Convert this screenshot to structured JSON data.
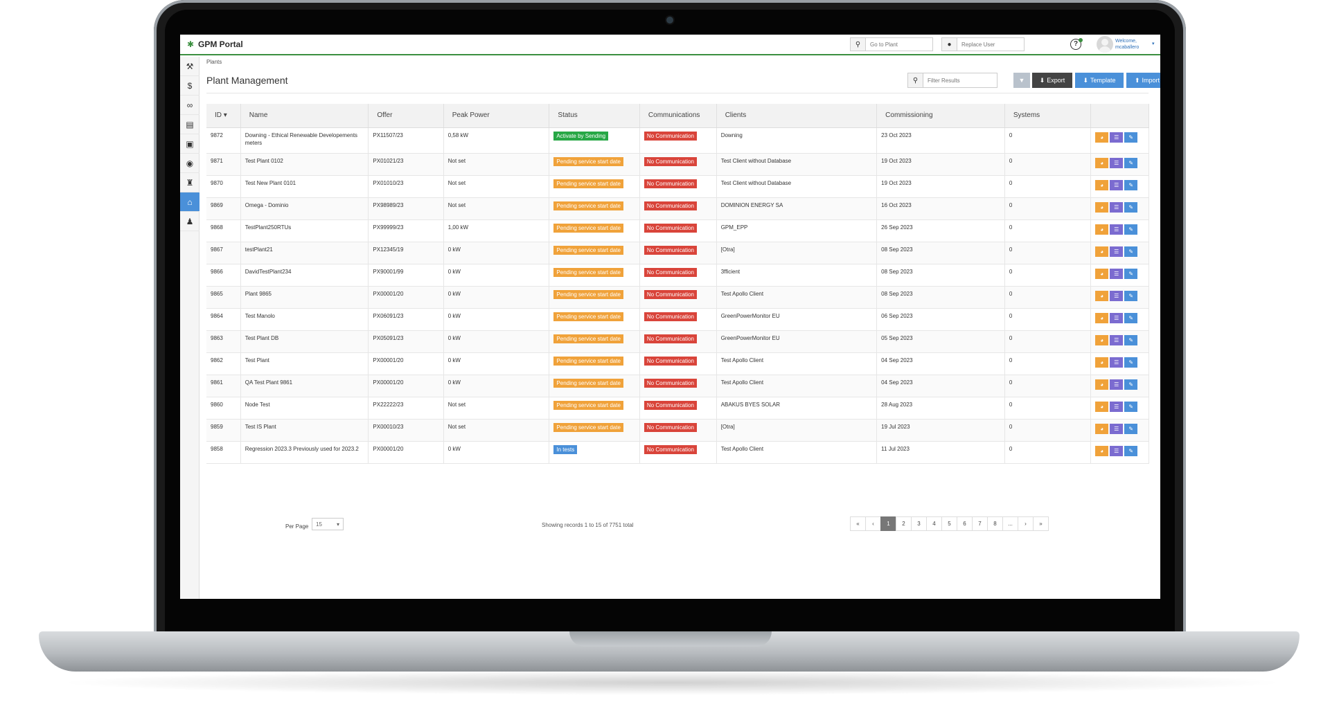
{
  "app": {
    "title": "GPM Portal"
  },
  "topbar": {
    "plant_search_placeholder": "Go to Plant",
    "user_search_placeholder": "Replace User",
    "welcome": "Welcome,",
    "username": "mcaballero"
  },
  "breadcrumb": "Plants",
  "page": {
    "title": "Plant Management"
  },
  "toolbar": {
    "filter_placeholder": "Filter Results",
    "export_label": "Export",
    "template_label": "Template",
    "import_label": "Import"
  },
  "table": {
    "headers": {
      "id": "ID",
      "name": "Name",
      "offer": "Offer",
      "peak_power": "Peak Power",
      "status": "Status",
      "communications": "Communications",
      "clients": "Clients",
      "commissioning": "Commissioning",
      "systems": "Systems"
    },
    "rows": [
      {
        "id": "9872",
        "name": "Downing - Ethical Renewable Developements meters",
        "offer": "PX11507/23",
        "peak": "0,58 kW",
        "status": "Activate by Sending",
        "status_color": "#27a745",
        "comm": "No Communication",
        "client": "Downing",
        "date": "23 Oct 2023",
        "systems": "0"
      },
      {
        "id": "9871",
        "name": "Test Plant 0102",
        "offer": "PX01021/23",
        "peak": "Not set",
        "status": "Pending service start date",
        "status_color": "#f0a23a",
        "comm": "No Communication",
        "client": "Test Client without Database",
        "date": "19 Oct 2023",
        "systems": "0"
      },
      {
        "id": "9870",
        "name": "Test New Plant 0101",
        "offer": "PX01010/23",
        "peak": "Not set",
        "status": "Pending service start date",
        "status_color": "#f0a23a",
        "comm": "No Communication",
        "client": "Test Client without Database",
        "date": "19 Oct 2023",
        "systems": "0"
      },
      {
        "id": "9869",
        "name": "Omega - Dominio",
        "offer": "PX98989/23",
        "peak": "Not set",
        "status": "Pending service start date",
        "status_color": "#f0a23a",
        "comm": "No Communication",
        "client": "DOMINION ENERGY SA",
        "date": "16 Oct 2023",
        "systems": "0"
      },
      {
        "id": "9868",
        "name": "TestPlant250RTUs",
        "offer": "PX99999/23",
        "peak": "1,00 kW",
        "status": "Pending service start date",
        "status_color": "#f0a23a",
        "comm": "No Communication",
        "client": "GPM_EPP",
        "date": "26 Sep 2023",
        "systems": "0"
      },
      {
        "id": "9867",
        "name": "testPlant21",
        "offer": "PX12345/19",
        "peak": "0 kW",
        "status": "Pending service start date",
        "status_color": "#f0a23a",
        "comm": "No Communication",
        "client": "[Otra]",
        "date": "08 Sep 2023",
        "systems": "0"
      },
      {
        "id": "9866",
        "name": "DavidTestPlant234",
        "offer": "PX90001/99",
        "peak": "0 kW",
        "status": "Pending service start date",
        "status_color": "#f0a23a",
        "comm": "No Communication",
        "client": "3fficient",
        "date": "08 Sep 2023",
        "systems": "0"
      },
      {
        "id": "9865",
        "name": "Plant 9865",
        "offer": "PX00001/20",
        "peak": "0 kW",
        "status": "Pending service start date",
        "status_color": "#f0a23a",
        "comm": "No Communication",
        "client": "Test Apollo Client",
        "date": "08 Sep 2023",
        "systems": "0"
      },
      {
        "id": "9864",
        "name": "Test Manolo",
        "offer": "PX06091/23",
        "peak": "0 kW",
        "status": "Pending service start date",
        "status_color": "#f0a23a",
        "comm": "No Communication",
        "client": "GreenPowerMonitor EU",
        "date": "06 Sep 2023",
        "systems": "0"
      },
      {
        "id": "9863",
        "name": "Test Plant DB",
        "offer": "PX05091/23",
        "peak": "0 kW",
        "status": "Pending service start date",
        "status_color": "#f0a23a",
        "comm": "No Communication",
        "client": "GreenPowerMonitor EU",
        "date": "05 Sep 2023",
        "systems": "0"
      },
      {
        "id": "9862",
        "name": "Test Plant",
        "offer": "PX00001/20",
        "peak": "0 kW",
        "status": "Pending service start date",
        "status_color": "#f0a23a",
        "comm": "No Communication",
        "client": "Test Apollo Client",
        "date": "04 Sep 2023",
        "systems": "0"
      },
      {
        "id": "9861",
        "name": "QA Test Plant 9861",
        "offer": "PX00001/20",
        "peak": "0 kW",
        "status": "Pending service start date",
        "status_color": "#f0a23a",
        "comm": "No Communication",
        "client": "Test Apollo Client",
        "date": "04 Sep 2023",
        "systems": "0"
      },
      {
        "id": "9860",
        "name": "Node Test",
        "offer": "PX22222/23",
        "peak": "Not set",
        "status": "Pending service start date",
        "status_color": "#f0a23a",
        "comm": "No Communication",
        "client": "ABAKUS BYES SOLAR",
        "date": "28 Aug 2023",
        "systems": "0"
      },
      {
        "id": "9859",
        "name": "Test IS Plant",
        "offer": "PX00010/23",
        "peak": "Not set",
        "status": "Pending service start date",
        "status_color": "#f0a23a",
        "comm": "No Communication",
        "client": "[Otra]",
        "date": "19 Jul 2023",
        "systems": "0"
      },
      {
        "id": "9858",
        "name": "Regression 2023.3 Previously used for 2023.2",
        "offer": "PX00001/20",
        "peak": "0 kW",
        "status": "In tests",
        "status_color": "#4a90d9",
        "comm": "No Communication",
        "client": "Test Apollo Client",
        "date": "11 Jul 2023",
        "systems": "0"
      }
    ]
  },
  "footer": {
    "per_page_label": "Per Page",
    "per_page_value": "15",
    "records": "Showing records 1 to 15 of 7751 total",
    "pages": [
      "1",
      "2",
      "3",
      "4",
      "5",
      "6",
      "7",
      "8",
      "..."
    ],
    "current_page": "1"
  },
  "colors": {
    "accent": "#4a90d9",
    "green": "#27a745",
    "orange": "#f0a23a",
    "red": "#d9443a",
    "purple": "#7b6bd0"
  }
}
